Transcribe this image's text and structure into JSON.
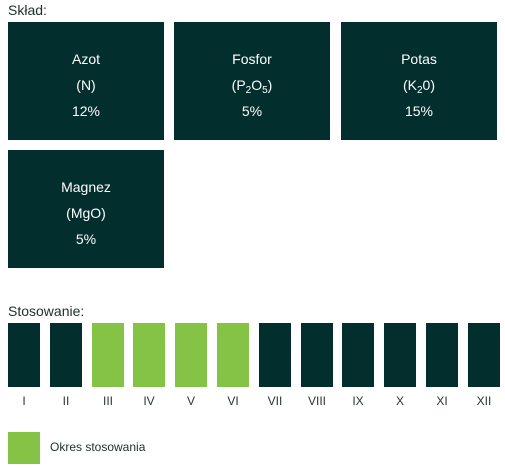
{
  "composition": {
    "heading": "Skład:",
    "tiles": [
      {
        "name": "Azot",
        "formula": "(N)",
        "value": "12%"
      },
      {
        "name": "Fosfor",
        "formula_prefix": "(P",
        "formula_sub1": "2",
        "formula_mid": "O",
        "formula_sub2": "5",
        "formula_suffix": ")",
        "value": "5%"
      },
      {
        "name": "Potas",
        "formula_prefix": "(K",
        "formula_sub1": "2",
        "formula_suffix": "0)",
        "value": "15%"
      },
      {
        "name": "Magnez",
        "formula": "(MgO)",
        "value": "5%"
      }
    ]
  },
  "application": {
    "heading": "Stosowanie:",
    "months": [
      {
        "label": "I",
        "active": false
      },
      {
        "label": "II",
        "active": false
      },
      {
        "label": "III",
        "active": true
      },
      {
        "label": "IV",
        "active": true
      },
      {
        "label": "V",
        "active": true
      },
      {
        "label": "VI",
        "active": true
      },
      {
        "label": "VII",
        "active": false
      },
      {
        "label": "VIII",
        "active": false
      },
      {
        "label": "IX",
        "active": false
      },
      {
        "label": "X",
        "active": false
      },
      {
        "label": "XI",
        "active": false
      },
      {
        "label": "XII",
        "active": false
      }
    ],
    "active_color": "#84c345",
    "inactive_color": "#032e2e"
  },
  "legend": {
    "label": "Okres stosowania",
    "color": "#84c345"
  }
}
